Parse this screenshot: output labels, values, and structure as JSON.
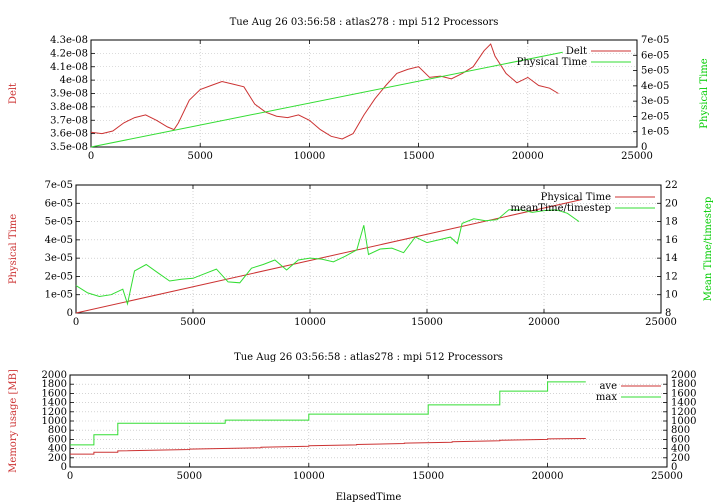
{
  "chart_data": [
    {
      "type": "line",
      "title": "Tue Aug 26 03:56:58 : atlas278 : mpi 512 Processors",
      "xlabel": "",
      "ylabel": "Delt",
      "y2label": "Physical Time",
      "xlim": [
        0,
        25000
      ],
      "ylim": [
        3.5e-08,
        4.3e-08
      ],
      "y2lim": [
        0,
        7e-05
      ],
      "xticks": [
        "0",
        "5000",
        "10000",
        "15000",
        "20000",
        "25000"
      ],
      "yticks": [
        "3.5e-08",
        "3.6e-08",
        "3.7e-08",
        "3.8e-08",
        "3.9e-08",
        "4e-08",
        "4.1e-08",
        "4.2e-08",
        "4.3e-08"
      ],
      "y2ticks": [
        "0",
        "1e-05",
        "2e-05",
        "3e-05",
        "4e-05",
        "5e-05",
        "6e-05",
        "7e-05"
      ],
      "grid": true,
      "legend_position": "top-right",
      "series": [
        {
          "name": "Delt",
          "axis": "y",
          "color": "#cc3333",
          "x": [
            0,
            500,
            1000,
            1500,
            2000,
            2500,
            3000,
            3500,
            3800,
            4000,
            4500,
            5000,
            5500,
            6000,
            6500,
            7000,
            7500,
            8000,
            8500,
            9000,
            9500,
            10000,
            10500,
            11000,
            11500,
            12000,
            12500,
            13000,
            13500,
            14000,
            14500,
            15000,
            15500,
            16000,
            16500,
            17000,
            17500,
            18000,
            18300,
            18500,
            19000,
            19500,
            20000,
            20500,
            21000,
            21400
          ],
          "y": [
            3.61e-08,
            3.6e-08,
            3.62e-08,
            3.68e-08,
            3.72e-08,
            3.74e-08,
            3.7e-08,
            3.65e-08,
            3.63e-08,
            3.68e-08,
            3.85e-08,
            3.93e-08,
            3.96e-08,
            3.99e-08,
            3.97e-08,
            3.95e-08,
            3.82e-08,
            3.76e-08,
            3.73e-08,
            3.72e-08,
            3.74e-08,
            3.7e-08,
            3.63e-08,
            3.58e-08,
            3.56e-08,
            3.6e-08,
            3.74e-08,
            3.86e-08,
            3.96e-08,
            4.05e-08,
            4.08e-08,
            4.1e-08,
            4.02e-08,
            4.03e-08,
            4.01e-08,
            4.05e-08,
            4.1e-08,
            4.22e-08,
            4.27e-08,
            4.18e-08,
            4.05e-08,
            3.98e-08,
            4.02e-08,
            3.96e-08,
            3.94e-08,
            3.9e-08
          ]
        },
        {
          "name": "Physical Time",
          "axis": "y2",
          "color": "#33dd33",
          "x": [
            0,
            21600
          ],
          "y": [
            0,
            6.2e-05
          ]
        }
      ]
    },
    {
      "type": "line",
      "title": "",
      "xlabel": "",
      "ylabel": "Physical Time",
      "y2label": "Mean Time/timestep",
      "xlim": [
        0,
        25000
      ],
      "ylim": [
        0,
        7e-05
      ],
      "y2lim": [
        8,
        22
      ],
      "xticks": [
        "0",
        "5000",
        "10000",
        "15000",
        "20000",
        "25000"
      ],
      "yticks": [
        "0",
        "1e-05",
        "2e-05",
        "3e-05",
        "4e-05",
        "5e-05",
        "6e-05",
        "7e-05"
      ],
      "y2ticks": [
        "8",
        "10",
        "12",
        "14",
        "16",
        "18",
        "20",
        "22"
      ],
      "grid": true,
      "legend_position": "top-right",
      "series": [
        {
          "name": "Physical Time",
          "axis": "y",
          "color": "#cc3333",
          "x": [
            0,
            21600
          ],
          "y": [
            0,
            6.2e-05
          ]
        },
        {
          "name": "meanTime/timestep",
          "axis": "y2",
          "color": "#33dd33",
          "x": [
            0,
            500,
            1000,
            1500,
            2000,
            2200,
            2500,
            3000,
            3500,
            4000,
            4500,
            5000,
            5500,
            6000,
            6500,
            7000,
            7500,
            8000,
            8500,
            9000,
            9500,
            10000,
            10500,
            11000,
            11500,
            12000,
            12300,
            12500,
            13000,
            13500,
            14000,
            14500,
            15000,
            15500,
            16000,
            16300,
            16500,
            17000,
            17500,
            18000,
            18500,
            19000,
            19500,
            20000,
            20500,
            21000,
            21500
          ],
          "y": [
            11,
            10.2,
            9.8,
            10,
            10.6,
            9,
            12.6,
            13.3,
            12.4,
            11.5,
            11.7,
            11.8,
            12.3,
            12.8,
            11.4,
            11.3,
            12.9,
            13.3,
            13.8,
            12.7,
            13.8,
            14.0,
            13.9,
            13.6,
            14.2,
            14.9,
            17.6,
            14.4,
            15.0,
            15.1,
            14.6,
            16.3,
            15.7,
            16.0,
            16.3,
            15.6,
            17.8,
            18.3,
            18.1,
            18.2,
            19.3,
            19.3,
            19.0,
            19.2,
            19.3,
            18.9,
            18.0
          ]
        }
      ]
    },
    {
      "type": "line",
      "title": "Tue Aug 26 03:56:58 : atlas278 : mpi 512 Processors",
      "xlabel": "ElapsedTime",
      "ylabel": "Memory usage [MB]",
      "y2label": "",
      "xlim": [
        0,
        25000
      ],
      "ylim": [
        0,
        2000
      ],
      "y2lim": [
        0,
        2000
      ],
      "xticks": [
        "0",
        "5000",
        "10000",
        "15000",
        "20000",
        "25000"
      ],
      "yticks": [
        "0",
        "200",
        "400",
        "600",
        "800",
        "1000",
        "1200",
        "1400",
        "1600",
        "1800",
        "2000"
      ],
      "y2ticks": [
        "0",
        "200",
        "400",
        "600",
        "800",
        "1000",
        "1200",
        "1400",
        "1600",
        "1800",
        "2000"
      ],
      "grid": true,
      "legend_position": "top-right",
      "series": [
        {
          "name": "ave",
          "axis": "y",
          "color": "#cc3333",
          "x": [
            0,
            1000,
            1000,
            2000,
            2000,
            5000,
            5000,
            8000,
            8000,
            10000,
            10000,
            12000,
            12000,
            14000,
            14000,
            16000,
            16000,
            18000,
            18000,
            20000,
            20000,
            21600
          ],
          "y": [
            280,
            280,
            320,
            320,
            350,
            380,
            390,
            420,
            430,
            450,
            460,
            480,
            490,
            510,
            520,
            540,
            550,
            570,
            580,
            600,
            610,
            620
          ]
        },
        {
          "name": "max",
          "axis": "y",
          "color": "#33dd33",
          "x": [
            0,
            1000,
            1000,
            2000,
            2000,
            6500,
            6500,
            10000,
            10000,
            15000,
            15000,
            18000,
            18000,
            20000,
            20000,
            21600
          ],
          "y": [
            480,
            480,
            700,
            700,
            950,
            950,
            1020,
            1020,
            1150,
            1150,
            1350,
            1350,
            1650,
            1650,
            1850,
            1850
          ]
        }
      ]
    }
  ]
}
